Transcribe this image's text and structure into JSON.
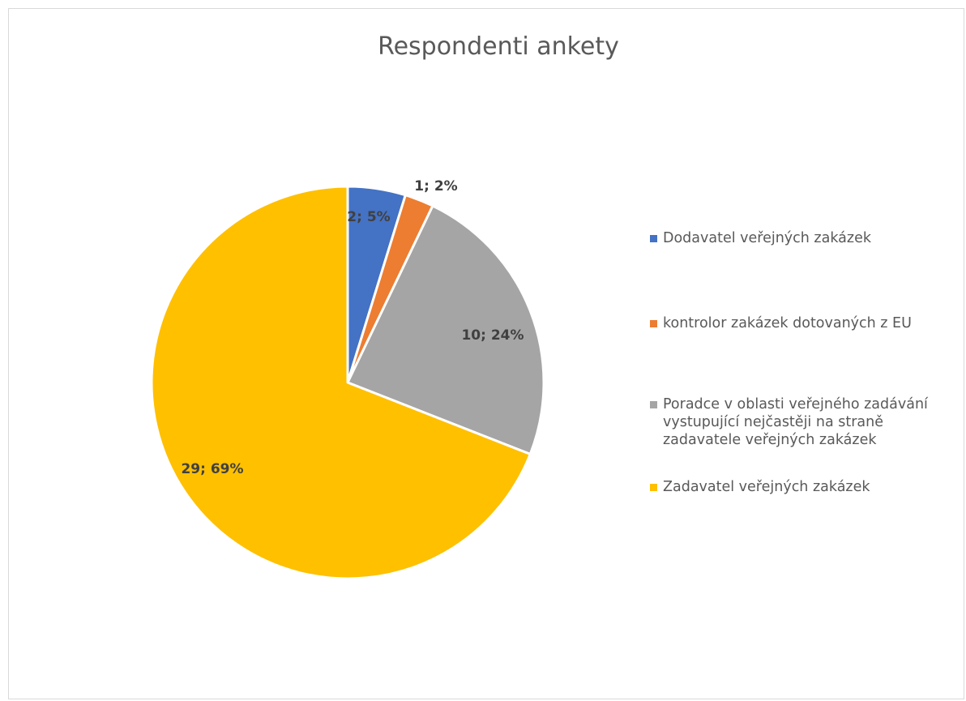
{
  "chart_data": {
    "type": "pie",
    "title": "Respondenti ankety",
    "series": [
      {
        "values": [
          2,
          1,
          10,
          29
        ],
        "percentages": [
          "5%",
          "2%",
          "24%",
          "69%"
        ]
      }
    ],
    "categories": [
      "Dodavatel veřejných zakázek",
      "kontrolor zakázek dotovaných z EU",
      "Poradce v oblasti veřejného zadávání vystupující nejčastěji na straně zadavatele veřejných zakázek",
      "Zadavatel veřejných zakázek"
    ],
    "data_labels": [
      "2; 5%",
      "1; 2%",
      "10; 24%",
      "29; 69%"
    ],
    "colors": [
      "#4472C4",
      "#ED7D31",
      "#A5A5A5",
      "#FFC000"
    ],
    "legend_position": "right",
    "start_angle": "12 o'clock, clockwise"
  },
  "legend": {
    "items": [
      {
        "label": "Dodavatel veřejných zakázek",
        "color": "#4472C4"
      },
      {
        "label": "kontrolor zakázek dotovaných z EU",
        "color": "#ED7D31"
      },
      {
        "label": "Poradce v oblasti veřejného zadávání\nvystupující nejčastěji na straně\nzadavatele veřejných zakázek",
        "color": "#A5A5A5"
      },
      {
        "label": "Zadavatel veřejných zakázek",
        "color": "#FFC000"
      }
    ]
  }
}
